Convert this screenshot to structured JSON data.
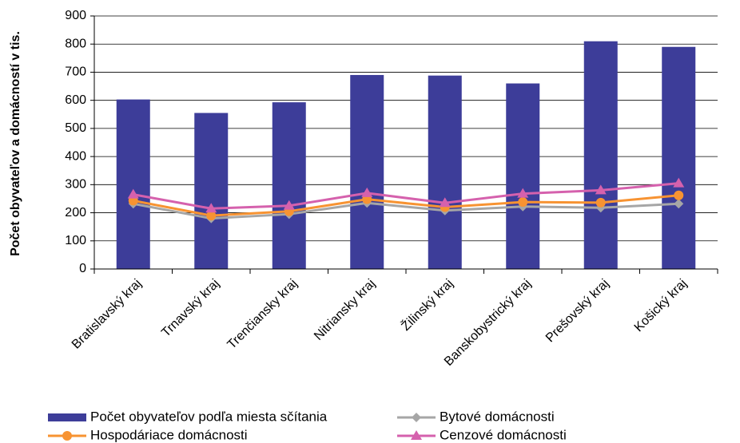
{
  "chart_data": {
    "type": "bar",
    "y_axis_label": "Počet obyvateľov a domácností v tis.",
    "categories": [
      "Bratislavský kraj",
      "Trnavský kraj",
      "Trenčiansky kraj",
      "Nitriansky kraj",
      "Žilinský kraj",
      "Banskobystrický kraj",
      "Prešovský kraj",
      "Košický kraj"
    ],
    "series": [
      {
        "name": "Počet obyvateľov podľa miesta sčítania",
        "type": "bar",
        "color": "#3d3d99",
        "values": [
          603,
          555,
          593,
          690,
          688,
          660,
          810,
          790
        ]
      },
      {
        "name": "Bytové domácnosti",
        "type": "line",
        "marker": "diamond",
        "color": "#a6a6a6",
        "values": [
          232,
          180,
          195,
          235,
          208,
          222,
          218,
          232
        ]
      },
      {
        "name": "Hospodáriace domácnosti",
        "type": "line",
        "marker": "circle",
        "color": "#f79332",
        "values": [
          243,
          190,
          205,
          248,
          220,
          238,
          236,
          262
        ]
      },
      {
        "name": "Cenzové domácnosti",
        "type": "line",
        "marker": "triangle",
        "color": "#d561ad",
        "values": [
          265,
          215,
          225,
          270,
          235,
          268,
          280,
          305
        ]
      }
    ],
    "ylim": [
      0,
      900
    ],
    "yticks": [
      0,
      100,
      200,
      300,
      400,
      500,
      600,
      700,
      800,
      900
    ],
    "grid": true
  }
}
